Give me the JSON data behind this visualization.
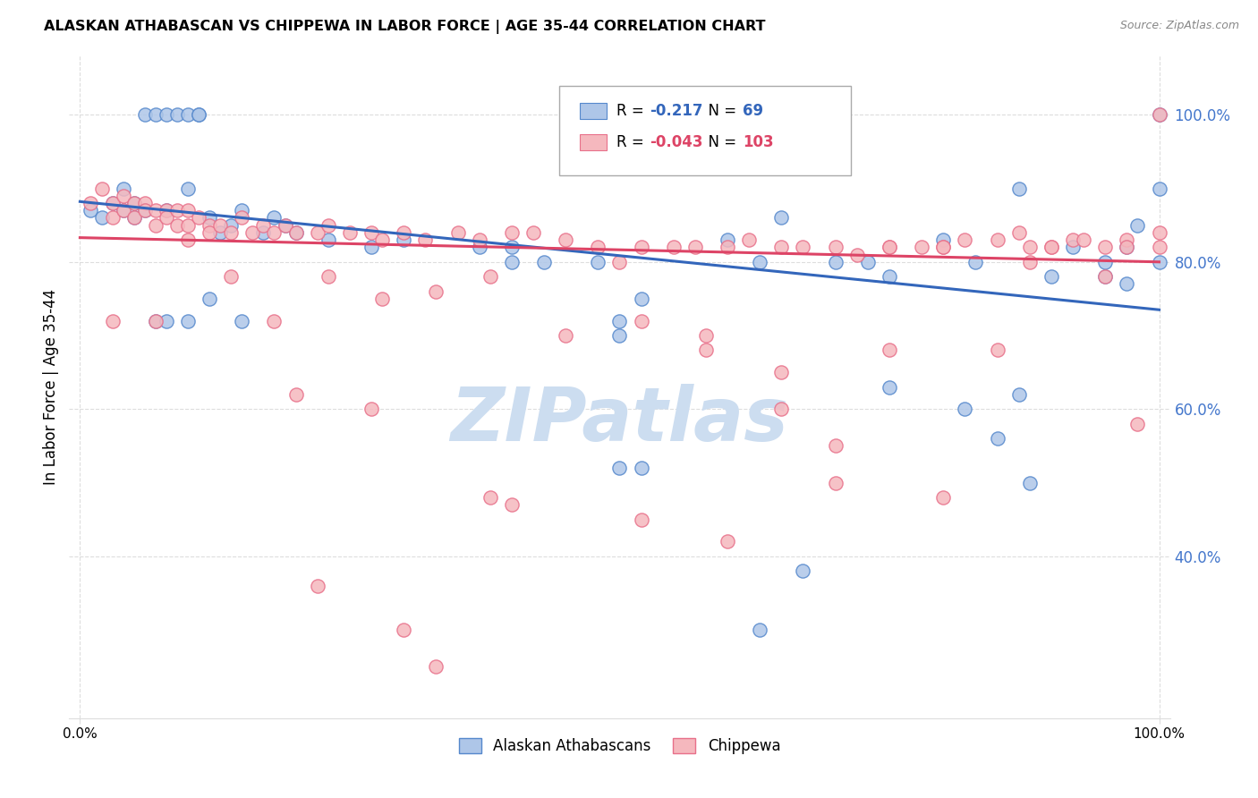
{
  "title": "ALASKAN ATHABASCAN VS CHIPPEWA IN LABOR FORCE | AGE 35-44 CORRELATION CHART",
  "source": "Source: ZipAtlas.com",
  "ylabel": "In Labor Force | Age 35-44",
  "ytick_vals": [
    0.4,
    0.6,
    0.8,
    1.0
  ],
  "ytick_labels": [
    "40.0%",
    "60.0%",
    "80.0%",
    "100.0%"
  ],
  "xlim": [
    -0.01,
    1.01
  ],
  "ylim": [
    0.18,
    1.08
  ],
  "legend_r_blue": "-0.217",
  "legend_n_blue": "69",
  "legend_r_pink": "-0.043",
  "legend_n_pink": "103",
  "blue_fill": "#aec6e8",
  "pink_fill": "#f5b8be",
  "blue_edge": "#5588cc",
  "pink_edge": "#e8708a",
  "line_blue": "#3366bb",
  "line_pink": "#dd4466",
  "tick_color": "#4477cc",
  "watermark": "ZIPatlas",
  "watermark_color": "#ccddf0",
  "blue_scatter_x": [
    0.01,
    0.02,
    0.03,
    0.04,
    0.04,
    0.05,
    0.05,
    0.06,
    0.06,
    0.07,
    0.08,
    0.08,
    0.09,
    0.1,
    0.1,
    0.11,
    0.11,
    0.12,
    0.13,
    0.14,
    0.15,
    0.17,
    0.18,
    0.19,
    0.2,
    0.23,
    0.27,
    0.3,
    0.37,
    0.4,
    0.4,
    0.43,
    0.48,
    0.5,
    0.5,
    0.52,
    0.6,
    0.63,
    0.65,
    0.7,
    0.73,
    0.75,
    0.8,
    0.83,
    0.87,
    0.9,
    0.92,
    0.95,
    0.97,
    0.97,
    0.98,
    1.0,
    1.0,
    1.0,
    0.07,
    0.08,
    0.1,
    0.12,
    0.15,
    0.5,
    0.52,
    0.75,
    0.87,
    0.82,
    0.95,
    0.85,
    0.88,
    0.63,
    0.67
  ],
  "blue_scatter_y": [
    0.87,
    0.86,
    0.88,
    0.87,
    0.9,
    0.86,
    0.88,
    0.87,
    1.0,
    1.0,
    0.87,
    1.0,
    1.0,
    1.0,
    0.9,
    1.0,
    1.0,
    0.86,
    0.84,
    0.85,
    0.87,
    0.84,
    0.86,
    0.85,
    0.84,
    0.83,
    0.82,
    0.83,
    0.82,
    0.8,
    0.82,
    0.8,
    0.8,
    0.72,
    0.7,
    0.75,
    0.83,
    0.8,
    0.86,
    0.8,
    0.8,
    0.78,
    0.83,
    0.8,
    0.9,
    0.78,
    0.82,
    0.8,
    0.82,
    0.77,
    0.85,
    0.8,
    1.0,
    0.9,
    0.72,
    0.72,
    0.72,
    0.75,
    0.72,
    0.52,
    0.52,
    0.63,
    0.62,
    0.6,
    0.78,
    0.56,
    0.5,
    0.3,
    0.38
  ],
  "pink_scatter_x": [
    0.01,
    0.02,
    0.03,
    0.03,
    0.04,
    0.04,
    0.05,
    0.05,
    0.06,
    0.06,
    0.07,
    0.07,
    0.08,
    0.08,
    0.09,
    0.09,
    0.1,
    0.1,
    0.11,
    0.12,
    0.12,
    0.13,
    0.14,
    0.15,
    0.16,
    0.17,
    0.18,
    0.19,
    0.2,
    0.22,
    0.23,
    0.25,
    0.27,
    0.28,
    0.3,
    0.32,
    0.35,
    0.37,
    0.4,
    0.42,
    0.45,
    0.48,
    0.5,
    0.52,
    0.55,
    0.57,
    0.6,
    0.62,
    0.65,
    0.67,
    0.7,
    0.72,
    0.75,
    0.78,
    0.8,
    0.82,
    0.85,
    0.87,
    0.88,
    0.9,
    0.92,
    0.93,
    0.95,
    0.97,
    0.97,
    1.0,
    1.0,
    1.0,
    0.03,
    0.07,
    0.1,
    0.14,
    0.18,
    0.23,
    0.28,
    0.33,
    0.38,
    0.45,
    0.52,
    0.58,
    0.65,
    0.7,
    0.75,
    0.8,
    0.85,
    0.9,
    0.95,
    0.98,
    0.22,
    0.33,
    0.52,
    0.6,
    0.7,
    0.8,
    0.4,
    0.58,
    0.38,
    0.27,
    0.2,
    0.65,
    0.75,
    0.88,
    0.3
  ],
  "pink_scatter_y": [
    0.88,
    0.9,
    0.88,
    0.86,
    0.89,
    0.87,
    0.88,
    0.86,
    0.88,
    0.87,
    0.87,
    0.85,
    0.87,
    0.86,
    0.87,
    0.85,
    0.87,
    0.85,
    0.86,
    0.85,
    0.84,
    0.85,
    0.84,
    0.86,
    0.84,
    0.85,
    0.84,
    0.85,
    0.84,
    0.84,
    0.85,
    0.84,
    0.84,
    0.83,
    0.84,
    0.83,
    0.84,
    0.83,
    0.84,
    0.84,
    0.83,
    0.82,
    0.8,
    0.82,
    0.82,
    0.82,
    0.82,
    0.83,
    0.82,
    0.82,
    0.82,
    0.81,
    0.82,
    0.82,
    0.82,
    0.83,
    0.83,
    0.84,
    0.82,
    0.82,
    0.83,
    0.83,
    0.82,
    0.83,
    0.82,
    0.84,
    1.0,
    0.82,
    0.72,
    0.72,
    0.83,
    0.78,
    0.72,
    0.78,
    0.75,
    0.76,
    0.78,
    0.7,
    0.72,
    0.68,
    0.65,
    0.55,
    0.68,
    0.82,
    0.68,
    0.82,
    0.78,
    0.58,
    0.36,
    0.25,
    0.45,
    0.42,
    0.5,
    0.48,
    0.47,
    0.7,
    0.48,
    0.6,
    0.62,
    0.6,
    0.82,
    0.8,
    0.3
  ],
  "blue_trend_x": [
    0.0,
    1.0
  ],
  "blue_trend_y": [
    0.882,
    0.735
  ],
  "pink_trend_x": [
    0.0,
    1.0
  ],
  "pink_trend_y": [
    0.833,
    0.8
  ],
  "grid_color": "#dddddd",
  "background_color": "#ffffff"
}
